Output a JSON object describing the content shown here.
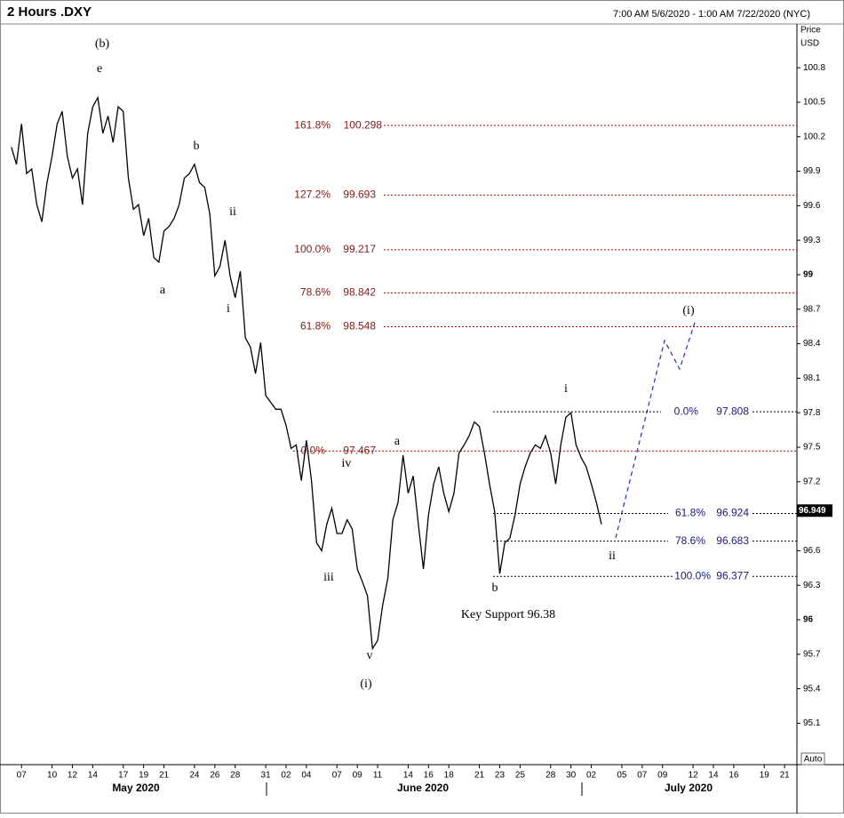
{
  "chart_data": {
    "type": "line",
    "title": "2 Hours .DXY",
    "range_text": "7:00 AM 5/6/2020 - 1:00 AM 7/22/2020 (NYC)",
    "axis_label": [
      "Price",
      "USD"
    ],
    "scale_mode": "Auto",
    "color": "#000000",
    "last_price": 96.949,
    "x": [
      "2020-05-06T00:00",
      "2020-05-06T12:00",
      "2020-05-07T00:00",
      "2020-05-07T12:00",
      "2020-05-08T00:00",
      "2020-05-08T12:00",
      "2020-05-09T00:00",
      "2020-05-09T12:00",
      "2020-05-10T00:00",
      "2020-05-10T12:00",
      "2020-05-11T00:00",
      "2020-05-11T12:00",
      "2020-05-12T00:00",
      "2020-05-12T12:00",
      "2020-05-13T00:00",
      "2020-05-13T12:00",
      "2020-05-14T00:00",
      "2020-05-14T12:00",
      "2020-05-15T00:00",
      "2020-05-15T12:00",
      "2020-05-16T00:00",
      "2020-05-16T12:00",
      "2020-05-17T00:00",
      "2020-05-17T12:00",
      "2020-05-18T00:00",
      "2020-05-18T12:00",
      "2020-05-19T00:00",
      "2020-05-19T12:00",
      "2020-05-20T00:00",
      "2020-05-20T12:00",
      "2020-05-21T00:00",
      "2020-05-21T12:00",
      "2020-05-22T00:00",
      "2020-05-22T12:00",
      "2020-05-23T00:00",
      "2020-05-23T12:00",
      "2020-05-24T00:00",
      "2020-05-24T12:00",
      "2020-05-25T00:00",
      "2020-05-25T12:00",
      "2020-05-26T00:00",
      "2020-05-26T12:00",
      "2020-05-27T00:00",
      "2020-05-27T12:00",
      "2020-05-28T00:00",
      "2020-05-28T12:00",
      "2020-05-29T00:00",
      "2020-05-29T12:00",
      "2020-05-30T00:00",
      "2020-05-30T12:00",
      "2020-05-31T00:00",
      "2020-05-31T12:00",
      "2020-06-01T00:00",
      "2020-06-01T12:00",
      "2020-06-02T00:00",
      "2020-06-02T12:00",
      "2020-06-03T00:00",
      "2020-06-03T12:00",
      "2020-06-04T00:00",
      "2020-06-04T12:00",
      "2020-06-05T00:00",
      "2020-06-05T12:00",
      "2020-06-06T00:00",
      "2020-06-06T12:00",
      "2020-06-07T00:00",
      "2020-06-07T12:00",
      "2020-06-08T00:00",
      "2020-06-08T12:00",
      "2020-06-09T00:00",
      "2020-06-09T12:00",
      "2020-06-10T00:00",
      "2020-06-10T12:00",
      "2020-06-11T00:00",
      "2020-06-11T12:00",
      "2020-06-12T00:00",
      "2020-06-12T12:00",
      "2020-06-13T00:00",
      "2020-06-13T12:00",
      "2020-06-14T00:00",
      "2020-06-14T12:00",
      "2020-06-15T00:00",
      "2020-06-15T12:00",
      "2020-06-16T00:00",
      "2020-06-16T12:00",
      "2020-06-17T00:00",
      "2020-06-17T12:00",
      "2020-06-18T00:00",
      "2020-06-18T12:00",
      "2020-06-19T00:00",
      "2020-06-19T12:00",
      "2020-06-20T00:00",
      "2020-06-20T12:00",
      "2020-06-21T00:00",
      "2020-06-21T12:00",
      "2020-06-22T00:00",
      "2020-06-22T12:00",
      "2020-06-23T00:00",
      "2020-06-23T12:00",
      "2020-06-24T00:00",
      "2020-06-24T12:00",
      "2020-06-25T00:00",
      "2020-06-25T12:00",
      "2020-06-26T00:00",
      "2020-06-26T12:00",
      "2020-06-27T00:00",
      "2020-06-27T12:00",
      "2020-06-28T00:00",
      "2020-06-28T12:00",
      "2020-06-29T00:00",
      "2020-06-29T12:00",
      "2020-06-30T00:00",
      "2020-06-30T12:00",
      "2020-07-01T00:00",
      "2020-07-01T12:00",
      "2020-07-02T00:00",
      "2020-07-02T12:00",
      "2020-07-03T00:00"
    ],
    "values": [
      100.11,
      99.96,
      100.31,
      99.88,
      99.92,
      99.61,
      99.46,
      99.8,
      100.03,
      100.31,
      100.42,
      100.03,
      99.84,
      99.92,
      99.61,
      100.23,
      100.46,
      100.54,
      100.23,
      100.38,
      100.15,
      100.46,
      100.42,
      99.84,
      99.57,
      99.61,
      99.34,
      99.49,
      99.15,
      99.11,
      99.38,
      99.42,
      99.49,
      99.61,
      99.84,
      99.88,
      99.96,
      99.8,
      99.76,
      99.53,
      98.99,
      99.07,
      99.3,
      98.99,
      98.8,
      99.03,
      98.45,
      98.37,
      98.14,
      98.41,
      97.95,
      97.89,
      97.83,
      97.83,
      97.69,
      97.49,
      97.52,
      97.21,
      97.56,
      97.21,
      96.67,
      96.6,
      96.83,
      96.97,
      96.75,
      96.75,
      96.87,
      96.79,
      96.44,
      96.33,
      96.21,
      95.75,
      95.82,
      96.13,
      96.36,
      96.87,
      97.02,
      97.43,
      97.1,
      97.25,
      96.83,
      96.44,
      96.91,
      97.18,
      97.33,
      97.1,
      96.94,
      97.1,
      97.45,
      97.52,
      97.6,
      97.72,
      97.68,
      97.45,
      97.18,
      96.94,
      96.4,
      96.67,
      96.71,
      96.91,
      97.18,
      97.33,
      97.45,
      97.52,
      97.49,
      97.6,
      97.45,
      97.18,
      97.52,
      97.76,
      97.8,
      97.52,
      97.41,
      97.33,
      97.18,
      97.02,
      96.83
    ],
    "xlim": [
      "2020-05-05T14:00",
      "2020-07-22T05:00"
    ],
    "ylim": [
      94.74,
      101.18
    ],
    "yticks": [
      95.1,
      95.4,
      95.7,
      96,
      96.3,
      96.6,
      97.2,
      97.5,
      97.8,
      98.1,
      98.4,
      98.7,
      99,
      99.3,
      99.6,
      99.9,
      100.2,
      100.5,
      100.8
    ],
    "xticks": [
      {
        "value": "2020-05-07T00:00",
        "label": "07"
      },
      {
        "value": "2020-05-10T00:00",
        "label": "10"
      },
      {
        "value": "2020-05-12T00:00",
        "label": "12"
      },
      {
        "value": "2020-05-14T00:00",
        "label": "14"
      },
      {
        "value": "2020-05-17T00:00",
        "label": "17"
      },
      {
        "value": "2020-05-19T00:00",
        "label": "19"
      },
      {
        "value": "2020-05-21T00:00",
        "label": "21"
      },
      {
        "value": "2020-05-24T00:00",
        "label": "24"
      },
      {
        "value": "2020-05-26T00:00",
        "label": "26"
      },
      {
        "value": "2020-05-28T00:00",
        "label": "28"
      },
      {
        "value": "2020-05-31T00:00",
        "label": "31"
      },
      {
        "value": "2020-06-02T00:00",
        "label": "02"
      },
      {
        "value": "2020-06-04T00:00",
        "label": "04"
      },
      {
        "value": "2020-06-07T00:00",
        "label": "07"
      },
      {
        "value": "2020-06-09T00:00",
        "label": "09"
      },
      {
        "value": "2020-06-11T00:00",
        "label": "11"
      },
      {
        "value": "2020-06-14T00:00",
        "label": "14"
      },
      {
        "value": "2020-06-16T00:00",
        "label": "16"
      },
      {
        "value": "2020-06-18T00:00",
        "label": "18"
      },
      {
        "value": "2020-06-21T00:00",
        "label": "21"
      },
      {
        "value": "2020-06-23T00:00",
        "label": "23"
      },
      {
        "value": "2020-06-25T00:00",
        "label": "25"
      },
      {
        "value": "2020-06-28T00:00",
        "label": "28"
      },
      {
        "value": "2020-06-30T00:00",
        "label": "30"
      },
      {
        "value": "2020-07-02T00:00",
        "label": "02"
      },
      {
        "value": "2020-07-05T00:00",
        "label": "05"
      },
      {
        "value": "2020-07-07T00:00",
        "label": "07"
      },
      {
        "value": "2020-07-09T00:00",
        "label": "09"
      },
      {
        "value": "2020-07-12T00:00",
        "label": "12"
      },
      {
        "value": "2020-07-14T00:00",
        "label": "14"
      },
      {
        "value": "2020-07-16T00:00",
        "label": "16"
      },
      {
        "value": "2020-07-19T00:00",
        "label": "19"
      },
      {
        "value": "2020-07-21T00:00",
        "label": "21"
      }
    ],
    "months": [
      "May 2020",
      "June 2020",
      "July 2020"
    ],
    "retracements": [
      {
        "text_color": "#7f1a1a",
        "line_color": "#c00000",
        "levels": [
          {
            "label": "161.8%",
            "value": 100.298
          },
          {
            "label": "127.2%",
            "value": 99.693
          },
          {
            "label": "100.0%",
            "value": 99.217
          },
          {
            "label": "78.6%",
            "value": 98.842
          },
          {
            "label": "61.8%",
            "value": 98.548
          },
          {
            "label": "0.0%",
            "value": 97.467
          }
        ]
      },
      {
        "text_color": "#1a1a7a",
        "line_color": "#000000",
        "levels": [
          {
            "label": "0.0%",
            "value": 97.808
          },
          {
            "label": "61.8%",
            "value": 96.924
          },
          {
            "label": "78.6%",
            "value": 96.683
          },
          {
            "label": "100.0%",
            "value": 96.377
          }
        ]
      }
    ],
    "annotations": [
      "(b)",
      "e",
      "b",
      "ii",
      "a",
      "i",
      "iv",
      "iii",
      "v",
      "(i)",
      "a",
      "b",
      "Key Support 96.38",
      "i",
      "ii",
      "(i)"
    ]
  }
}
